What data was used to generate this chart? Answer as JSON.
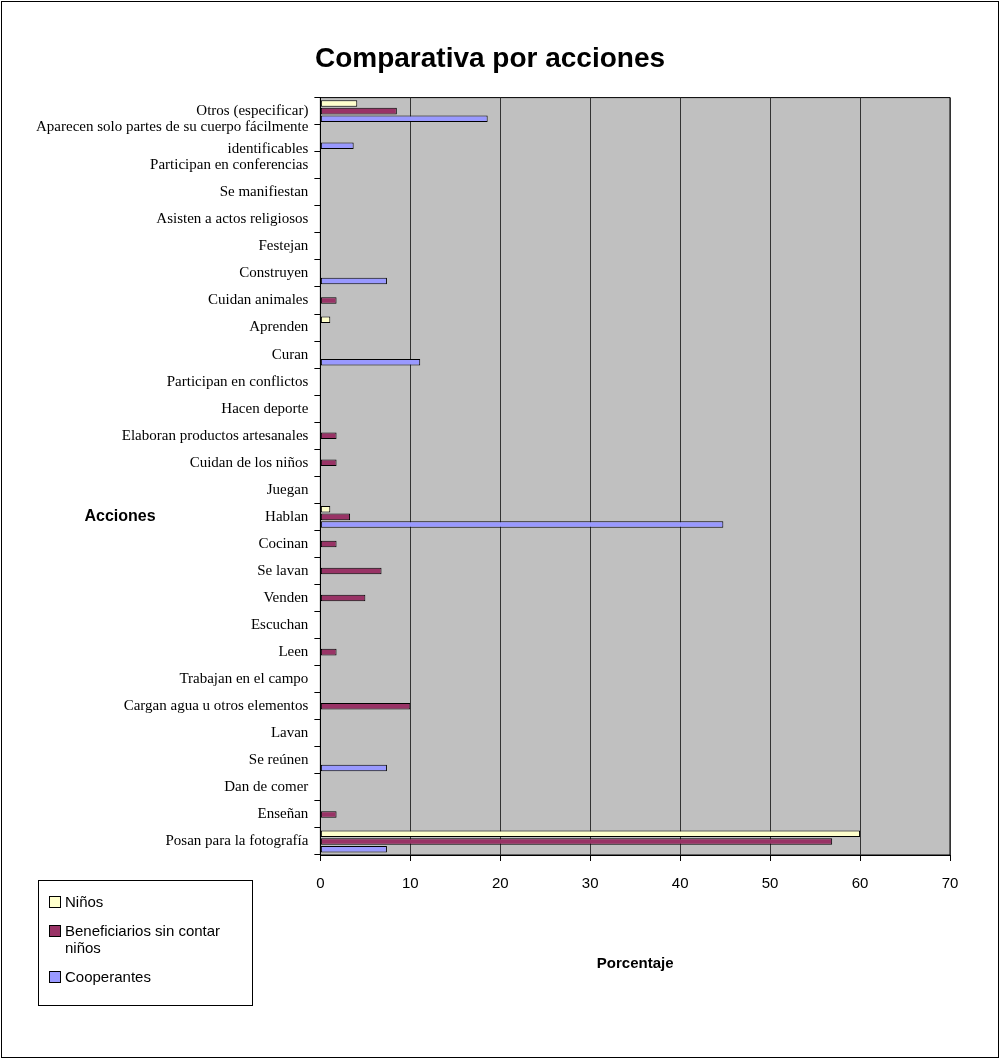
{
  "chart_data": {
    "type": "bar",
    "orientation": "horizontal",
    "title": "Comparativa por acciones",
    "xlabel": "Porcentaje",
    "ylabel": "Acciones",
    "categories": [
      "Otros (especificar)",
      "Aparecen solo partes de su cuerpo fácilmente identificables",
      "Participan en conferencias",
      "Se manifiestan",
      "Asisten a actos religiosos",
      "Festejan",
      "Construyen",
      "Cuidan animales",
      "Aprenden",
      "Curan",
      "Participan en conflictos",
      "Hacen deporte",
      "Elaboran productos artesanales",
      "Cuidan de los niños",
      "Juegan",
      "Hablan",
      "Cocinan",
      "Se lavan",
      "Venden",
      "Escuchan",
      "Leen",
      "Trabajan en el campo",
      "Cargan agua u otros elementos",
      "Lavan",
      "Se reúnen",
      "Dan de comer",
      "Enseñan",
      "Posan para la fotografía"
    ],
    "series": [
      {
        "name": "Niños",
        "color": "#ffffcc",
        "values": [
          4.1,
          0,
          0,
          0,
          0,
          0,
          0,
          0,
          1.1,
          0,
          0,
          0,
          0,
          0,
          0,
          1.1,
          0,
          0,
          0,
          0,
          0,
          0,
          0,
          0,
          0,
          0,
          0,
          60
        ]
      },
      {
        "name": "Beneficiarios sin contar niños",
        "color": "#993366",
        "values": [
          8.5,
          0,
          0,
          0,
          0,
          0,
          0,
          1.8,
          0,
          0,
          0,
          0,
          1.8,
          1.8,
          0,
          3.3,
          1.8,
          6.8,
          5.0,
          0,
          1.8,
          0,
          10,
          0,
          0,
          0,
          1.8,
          56.9
        ]
      },
      {
        "name": "Cooperantes",
        "color": "#9999ff",
        "values": [
          18.6,
          3.7,
          0,
          0,
          0,
          0,
          7.4,
          0,
          0,
          11.1,
          0,
          0,
          0,
          0,
          0,
          44.8,
          0,
          0,
          0,
          0,
          0,
          0,
          0,
          0,
          7.4,
          0,
          0,
          7.4
        ]
      }
    ],
    "xlim": [
      0,
      70
    ],
    "xticks": [
      0,
      10,
      20,
      30,
      40,
      50,
      60,
      70
    ],
    "grid": "x",
    "legend": "bottom left"
  }
}
